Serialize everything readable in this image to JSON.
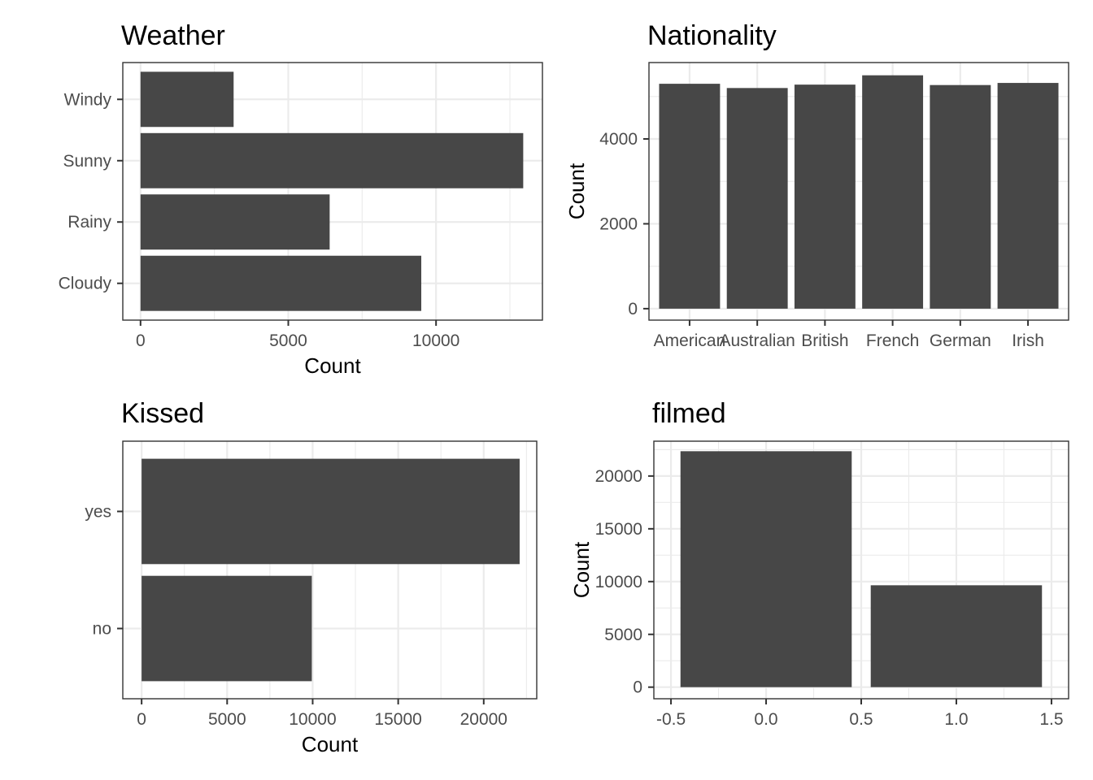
{
  "chart_data": [
    {
      "type": "bar",
      "orientation": "horizontal",
      "title": "Weather",
      "xlabel": "Count",
      "ylabel": "",
      "categories": [
        "Cloudy",
        "Rainy",
        "Sunny",
        "Windy"
      ],
      "values": [
        9500,
        6400,
        12950,
        3150
      ],
      "xlim": [
        -600,
        13600
      ],
      "x_ticks": [
        0,
        5000,
        10000
      ],
      "grid": true
    },
    {
      "type": "bar",
      "orientation": "vertical",
      "title": "Nationality",
      "xlabel": "",
      "ylabel": "Count",
      "categories": [
        "American",
        "Australian",
        "British",
        "French",
        "German",
        "Irish"
      ],
      "values": [
        5300,
        5200,
        5280,
        5500,
        5270,
        5320
      ],
      "ylim": [
        -270,
        5800
      ],
      "y_ticks": [
        0,
        2000,
        4000
      ],
      "grid": true
    },
    {
      "type": "bar",
      "orientation": "horizontal",
      "title": "Kissed",
      "xlabel": "Count",
      "ylabel": "",
      "categories": [
        "no",
        "yes"
      ],
      "values": [
        9950,
        22100
      ],
      "xlim": [
        -1100,
        23100
      ],
      "x_ticks": [
        0,
        5000,
        10000,
        15000,
        20000
      ],
      "grid": true
    },
    {
      "type": "bar",
      "orientation": "vertical",
      "title": "filmed",
      "xlabel": "",
      "ylabel": "Count",
      "x": [
        0,
        1
      ],
      "values": [
        22350,
        9650
      ],
      "xlim": [
        -0.5,
        1.5
      ],
      "ylim": [
        -1100,
        23300
      ],
      "x_ticks": [
        -0.5,
        0.0,
        0.5,
        1.0,
        1.5
      ],
      "x_tick_labels": [
        "-0.5",
        "0.0",
        "0.5",
        "1.0",
        "1.5"
      ],
      "y_ticks": [
        0,
        5000,
        10000,
        15000,
        20000
      ],
      "grid": true
    }
  ]
}
